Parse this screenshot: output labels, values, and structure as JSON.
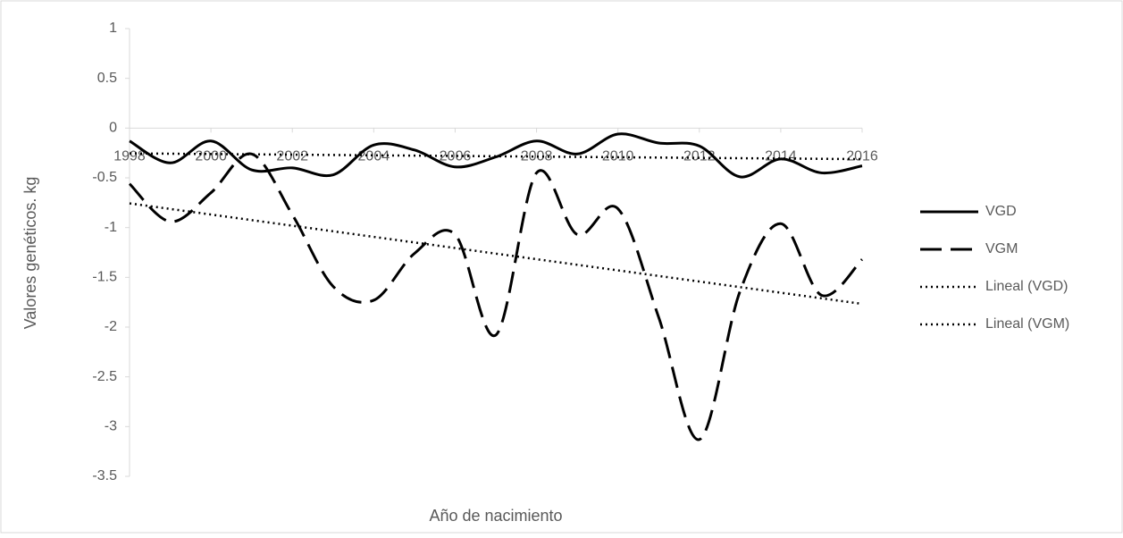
{
  "chart_data": {
    "type": "line",
    "x_label": "Año de nacimiento",
    "y_label": "Valores genéticos. kg",
    "x": [
      1998,
      1999,
      2000,
      2001,
      2002,
      2003,
      2004,
      2005,
      2006,
      2007,
      2008,
      2009,
      2010,
      2011,
      2012,
      2013,
      2014,
      2015,
      2016
    ],
    "xlim": [
      1998,
      2016
    ],
    "xticks": [
      1998,
      2000,
      2002,
      2004,
      2006,
      2008,
      2010,
      2012,
      2014,
      2016
    ],
    "ylim": [
      -3.5,
      1
    ],
    "yticks": [
      -3.5,
      -3,
      -2.5,
      -2,
      -1.5,
      -1,
      -0.5,
      0,
      0.5,
      1
    ],
    "series": [
      {
        "name": "VGD",
        "color": "#000000",
        "dash": "solid",
        "trend_name": "Lineal (VGD)",
        "values": [
          -0.13,
          -0.35,
          -0.13,
          -0.42,
          -0.4,
          -0.47,
          -0.17,
          -0.22,
          -0.39,
          -0.29,
          -0.13,
          -0.26,
          -0.06,
          -0.15,
          -0.18,
          -0.49,
          -0.31,
          -0.45,
          -0.38
        ]
      },
      {
        "name": "VGM",
        "color": "#000000",
        "dash": "dashed",
        "trend_name": "Lineal (VGM)",
        "values": [
          -0.56,
          -0.94,
          -0.65,
          -0.26,
          -0.87,
          -1.59,
          -1.73,
          -1.26,
          -1.07,
          -2.08,
          -0.45,
          -1.07,
          -0.81,
          -1.9,
          -3.13,
          -1.64,
          -0.96,
          -1.68,
          -1.32
        ]
      }
    ]
  }
}
